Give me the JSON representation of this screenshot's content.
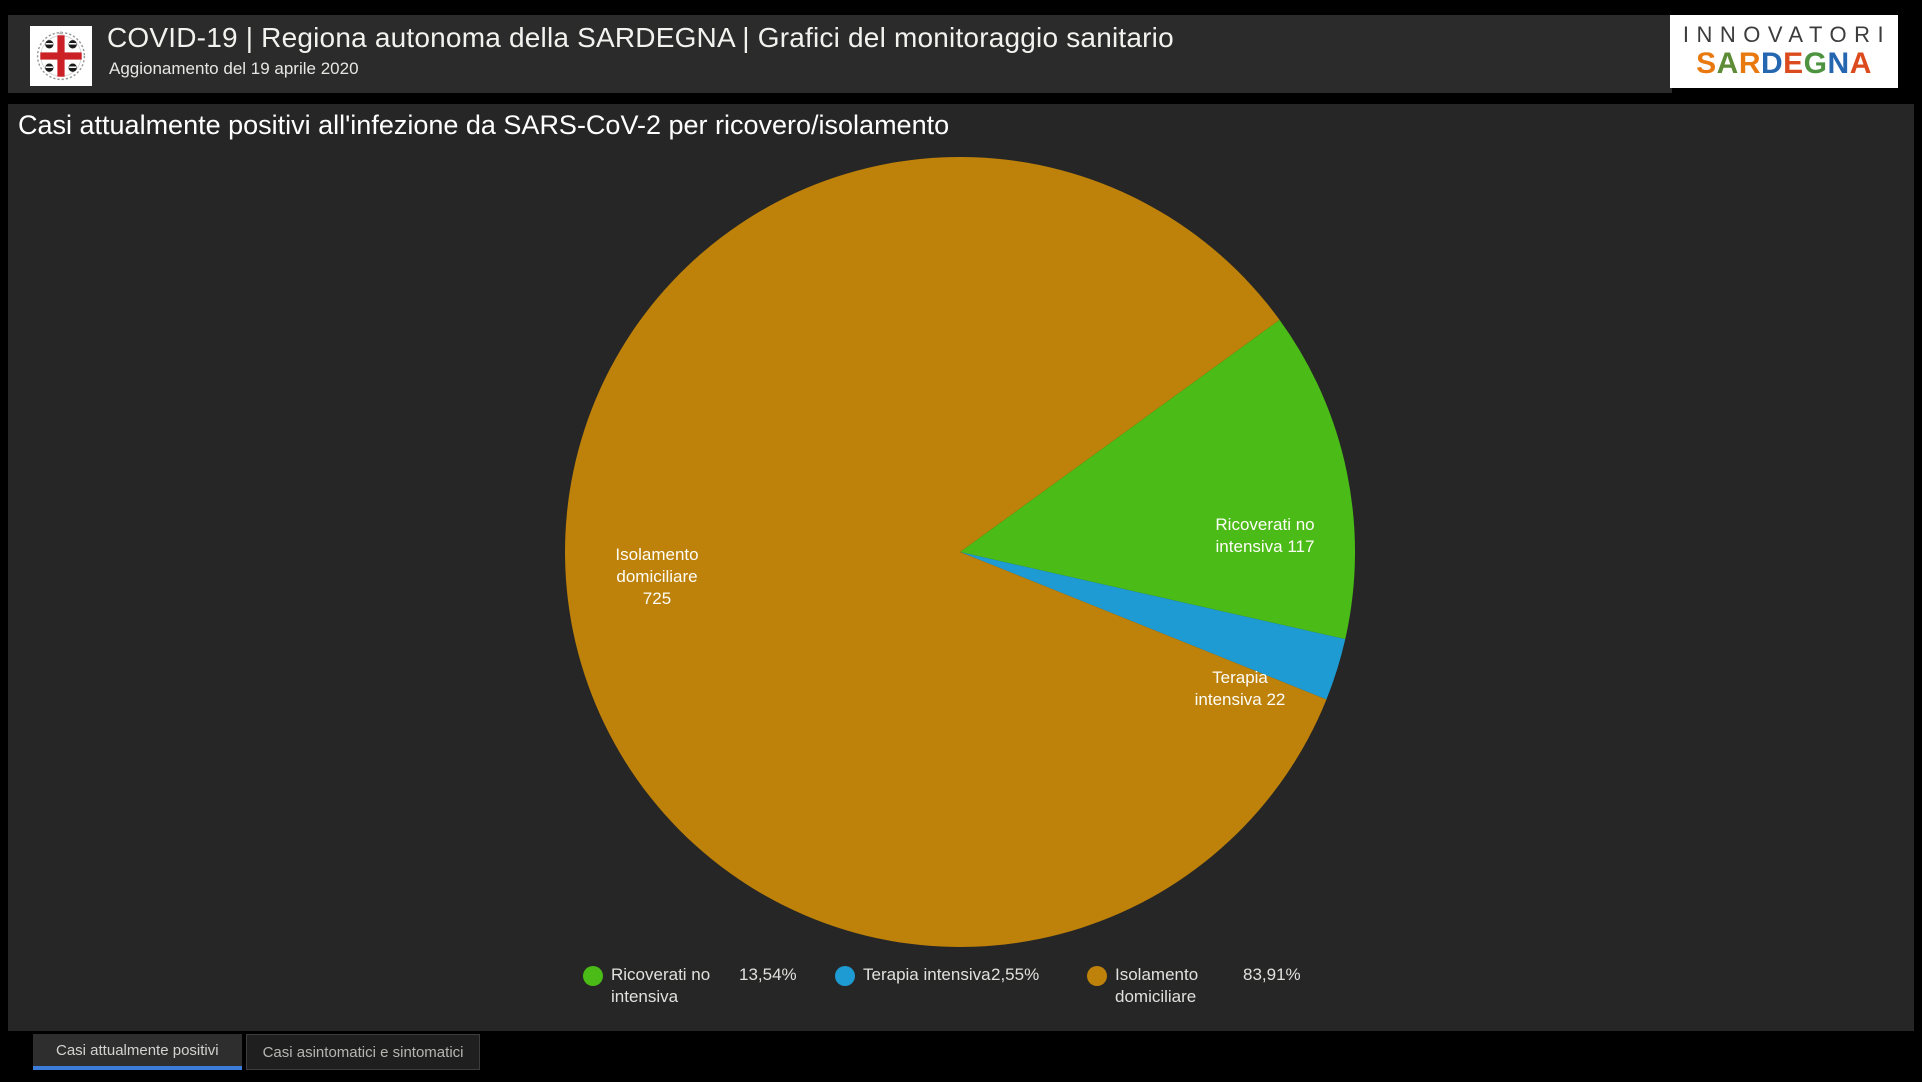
{
  "header": {
    "title": "COVID-19 | Regiona autonoma della SARDEGNA | Grafici del monitoraggio sanitario",
    "subtitle": "Aggionamento del 19 aprile 2020",
    "region_logo_icon": "sardegna-coat-of-arms",
    "brand": {
      "line1": "INNOVATORI",
      "line2": "SARDEGNA",
      "line2_letters": [
        {
          "ch": "S",
          "color": "#E8790F"
        },
        {
          "ch": "A",
          "color": "#5E8C36"
        },
        {
          "ch": "R",
          "color": "#E8790F"
        },
        {
          "ch": "D",
          "color": "#2466B0"
        },
        {
          "ch": "E",
          "color": "#DB4B1E"
        },
        {
          "ch": "G",
          "color": "#4E9440"
        },
        {
          "ch": "N",
          "color": "#2466B0"
        },
        {
          "ch": "A",
          "color": "#DB4B1E"
        }
      ]
    }
  },
  "chart_data": {
    "type": "pie",
    "title": "Casi attualmente positivi all'infezione da SARS-CoV-2 per ricovero/isolamento",
    "total": 864,
    "start_angle_deg": -36,
    "slices": [
      {
        "name": "Ricoverati no intensiva",
        "value": 117,
        "percent": "13,54%",
        "color": "#4BBB17",
        "slice_label_lines": [
          "Ricoverati no",
          "intensiva 117"
        ]
      },
      {
        "name": "Terapia intensiva",
        "value": 22,
        "percent": "2,55%",
        "color": "#1E9BD2",
        "slice_label_lines": [
          "Terapia",
          "intensiva 22"
        ]
      },
      {
        "name": "Isolamento domiciliare",
        "value": 725,
        "percent": "83,91%",
        "color": "#BE8109",
        "slice_label_lines": [
          "Isolamento",
          "domiciliare",
          "725"
        ]
      }
    ],
    "legend": {
      "position": "bottom",
      "items": [
        {
          "label_line1": "Ricoverati no",
          "label_line2": "intensiva",
          "percent": "13,54%",
          "color": "#4BBB17"
        },
        {
          "label_line1": "Terapia intensiva",
          "label_line2": "",
          "percent": "2,55%",
          "color": "#1E9BD2"
        },
        {
          "label_line1": "Isolamento",
          "label_line2": "domiciliare",
          "percent": "83,91%",
          "color": "#BE8109"
        }
      ]
    }
  },
  "tabs": [
    {
      "label": "Casi attualmente positivi",
      "active": true
    },
    {
      "label": "Casi asintomatici e sintomatici",
      "active": false
    }
  ],
  "colors": {
    "page_background": "#000000",
    "panel_background": "#262626",
    "header_background": "#2b2b2b",
    "active_tab_underline": "#3b7dd8"
  }
}
